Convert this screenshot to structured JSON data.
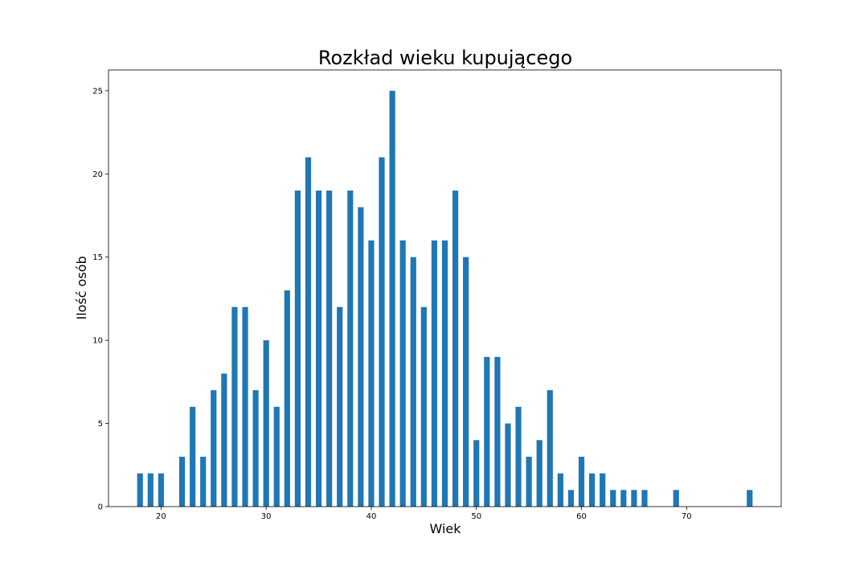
{
  "chart_data": {
    "type": "bar",
    "title": "Rozkład wieku kupującego",
    "xlabel": "Wiek",
    "ylabel": "Ilość osób",
    "xlim": [
      15,
      79
    ],
    "ylim": [
      0,
      26.25
    ],
    "xticks": [
      20,
      30,
      40,
      50,
      60,
      70
    ],
    "yticks": [
      0,
      5,
      10,
      15,
      20,
      25
    ],
    "bar_color": "#1f77b4",
    "grid": false,
    "x": [
      18,
      19,
      20,
      22,
      23,
      24,
      25,
      26,
      27,
      28,
      29,
      30,
      31,
      32,
      33,
      34,
      35,
      36,
      37,
      38,
      39,
      40,
      41,
      42,
      43,
      44,
      45,
      46,
      47,
      48,
      49,
      50,
      51,
      52,
      53,
      54,
      55,
      56,
      57,
      58,
      59,
      60,
      61,
      62,
      63,
      64,
      65,
      66,
      69,
      76
    ],
    "values": [
      2,
      2,
      2,
      3,
      6,
      3,
      7,
      8,
      12,
      12,
      7,
      10,
      6,
      13,
      19,
      21,
      19,
      19,
      12,
      19,
      18,
      16,
      21,
      25,
      16,
      15,
      12,
      16,
      16,
      19,
      15,
      4,
      9,
      9,
      5,
      6,
      3,
      4,
      7,
      2,
      1,
      3,
      2,
      2,
      1,
      1,
      1,
      1,
      1,
      1
    ]
  }
}
